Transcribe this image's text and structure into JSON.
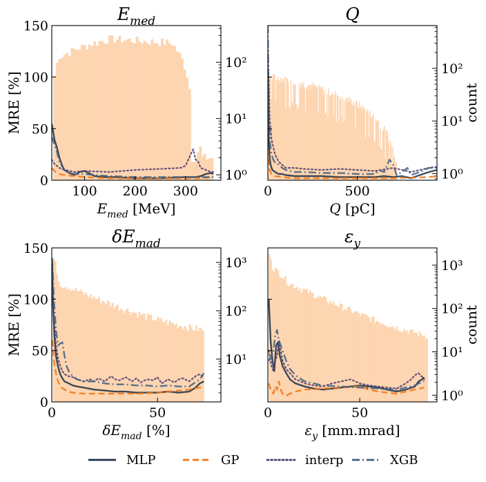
{
  "colors": {
    "hist": "#fdd5b1",
    "MLP": "#1b2f45",
    "GP": "#f2730f",
    "interp": "#4b3b70",
    "XGB": "#3e6080"
  },
  "legend": [
    {
      "name": "MLP",
      "style": "solid"
    },
    {
      "name": "GP",
      "style": "dashed"
    },
    {
      "name": "interp",
      "style": "dotted"
    },
    {
      "name": "XGB",
      "style": "dashdot"
    }
  ],
  "chart_data": [
    {
      "id": "emed",
      "type": "line",
      "title": "E_med",
      "title_main": "E",
      "title_sub": "med",
      "xlabel": "E_med [MeV]",
      "xlabel_main": "E",
      "xlabel_sub": "med",
      "xlabel_unit": "[MeV]",
      "ylabel": "MRE [%]",
      "right_label": "",
      "xlim": [
        35,
        370
      ],
      "ylim": [
        0,
        150
      ],
      "xticks": [
        100,
        200,
        300
      ],
      "xtick_labels": [
        "100",
        "200",
        "300"
      ],
      "yticks": [
        0,
        50,
        100,
        150
      ],
      "ytick_labels": [
        "0",
        "50",
        "100",
        "150"
      ],
      "right_log": [
        0.8,
        450
      ],
      "right_ticks": [
        1,
        10,
        100
      ],
      "right_tick_labels": [
        "10⁰",
        "10¹",
        "10²"
      ],
      "hist": {
        "x0": 38,
        "x1": 355,
        "bins": 64,
        "profile": "emed"
      },
      "series": [
        {
          "name": "MLP",
          "x": [
            35,
            40,
            45,
            50,
            55,
            60,
            70,
            80,
            90,
            100,
            120,
            140,
            160,
            200,
            250,
            300,
            320,
            330,
            340,
            350,
            355
          ],
          "y": [
            55,
            40,
            32,
            22,
            15,
            10,
            7,
            5,
            8,
            9,
            4,
            3,
            3,
            2,
            2,
            3,
            3,
            4,
            6,
            7,
            6
          ]
        },
        {
          "name": "GP",
          "x": [
            35,
            40,
            45,
            50,
            60,
            80,
            100,
            150,
            200,
            250,
            300,
            330,
            350,
            355
          ],
          "y": [
            12,
            9,
            7,
            6,
            5,
            4,
            3,
            2,
            2,
            2,
            2,
            2,
            3,
            3
          ]
        },
        {
          "name": "interp",
          "x": [
            35,
            40,
            50,
            60,
            80,
            100,
            150,
            200,
            250,
            290,
            300,
            310,
            315,
            320,
            325,
            330,
            340,
            350,
            355
          ],
          "y": [
            20,
            16,
            12,
            10,
            8,
            9,
            8,
            10,
            11,
            12,
            14,
            25,
            30,
            20,
            18,
            12,
            10,
            8,
            8
          ]
        },
        {
          "name": "XGB",
          "x": [
            35,
            40,
            45,
            50,
            60,
            70,
            80,
            100,
            120,
            150,
            200,
            250,
            300,
            355
          ],
          "y": [
            42,
            35,
            28,
            18,
            10,
            7,
            6,
            6,
            5,
            4,
            3,
            3,
            3,
            3
          ]
        }
      ]
    },
    {
      "id": "q",
      "type": "line",
      "title": "Q",
      "title_main": "Q",
      "title_sub": "",
      "xlabel": "Q [pC]",
      "xlabel_main": "Q",
      "xlabel_sub": "",
      "xlabel_unit": "[pC]",
      "ylabel": "",
      "right_label": "count",
      "xlim": [
        0,
        945
      ],
      "ylim": [
        0,
        150
      ],
      "xticks": [
        0,
        500
      ],
      "xtick_labels": [
        "0",
        "500"
      ],
      "yticks": [
        0,
        50,
        100,
        150
      ],
      "ytick_labels": [
        "",
        "",
        "",
        ""
      ],
      "right_log": [
        0.75,
        650
      ],
      "right_ticks": [
        1,
        10,
        100
      ],
      "right_tick_labels": [
        "10⁰",
        "10¹",
        "10²"
      ],
      "hist": {
        "x0": 2,
        "x1": 720,
        "bins": 150,
        "profile": "q"
      },
      "series": [
        {
          "name": "MLP",
          "x": [
            0,
            3,
            6,
            10,
            15,
            25,
            40,
            60,
            80,
            100,
            150,
            200,
            300,
            400,
            500,
            600,
            650,
            700,
            750,
            800,
            850,
            900,
            945
          ],
          "y": [
            100,
            60,
            35,
            22,
            15,
            10,
            8,
            6,
            6,
            5,
            4,
            4,
            4,
            3,
            3,
            3,
            4,
            3,
            4,
            2,
            5,
            8,
            10
          ]
        },
        {
          "name": "GP",
          "x": [
            0,
            5,
            10,
            20,
            40,
            80,
            150,
            300,
            500,
            700,
            900,
            945
          ],
          "y": [
            30,
            15,
            10,
            6,
            4,
            3,
            2,
            2,
            2,
            2,
            3,
            4
          ]
        },
        {
          "name": "interp",
          "x": [
            0,
            10,
            20,
            40,
            60,
            80,
            100,
            150,
            200,
            300,
            400,
            500,
            600,
            700,
            750,
            800,
            850,
            900,
            945
          ],
          "y": [
            130,
            60,
            40,
            25,
            18,
            15,
            12,
            12,
            11,
            10,
            11,
            10,
            9,
            12,
            10,
            8,
            10,
            12,
            13
          ]
        },
        {
          "name": "XGB",
          "x": [
            0,
            3,
            6,
            10,
            20,
            30,
            40,
            60,
            80,
            100,
            150,
            200,
            300,
            400,
            500,
            600,
            620,
            650,
            680,
            700,
            720,
            750,
            780,
            800,
            850,
            900,
            945
          ],
          "y": [
            150,
            90,
            60,
            40,
            25,
            20,
            17,
            15,
            12,
            10,
            8,
            8,
            7,
            7,
            6,
            6,
            10,
            8,
            20,
            15,
            5,
            8,
            12,
            5,
            8,
            12,
            12
          ]
        }
      ]
    },
    {
      "id": "demad",
      "type": "line",
      "title": "δE_mad",
      "title_main": "δE",
      "title_sub": "mad",
      "xlabel": "δE_mad [%]",
      "xlabel_main": "δE",
      "xlabel_sub": "mad",
      "xlabel_unit": "[%]",
      "ylabel": "MRE [%]",
      "right_label": "",
      "xlim": [
        0,
        80
      ],
      "ylim": [
        0,
        150
      ],
      "xticks": [
        0,
        50
      ],
      "xtick_labels": [
        "0",
        "50"
      ],
      "yticks": [
        0,
        50,
        100,
        150
      ],
      "ytick_labels": [
        "0",
        "50",
        "100",
        "150"
      ],
      "right_log": [
        1.3,
        2000
      ],
      "right_ticks": [
        10,
        100,
        1000
      ],
      "right_tick_labels": [
        "10¹",
        "10²",
        "10³"
      ],
      "hist": {
        "x0": 0.5,
        "x1": 72,
        "bins": 90,
        "profile": "demad"
      },
      "series": [
        {
          "name": "MLP",
          "x": [
            0.2,
            0.6,
            1.2,
            2,
            3,
            4,
            5,
            6,
            8,
            10,
            12,
            15,
            20,
            25,
            30,
            35,
            40,
            45,
            50,
            55,
            60,
            65,
            68,
            70,
            72
          ],
          "y": [
            135,
            95,
            65,
            45,
            34,
            27,
            23,
            20,
            18,
            16,
            15,
            14,
            12,
            11,
            10,
            10,
            9,
            9,
            9,
            10,
            9,
            10,
            14,
            18,
            20
          ]
        },
        {
          "name": "GP",
          "x": [
            0.3,
            1,
            2,
            3,
            4,
            6,
            8,
            10,
            15,
            20,
            30,
            40,
            50,
            55,
            60,
            65,
            70,
            72
          ],
          "y": [
            60,
            40,
            28,
            20,
            15,
            12,
            10,
            9,
            8,
            8,
            8,
            8,
            9,
            10,
            11,
            12,
            14,
            15
          ]
        },
        {
          "name": "interp",
          "x": [
            0.2,
            1,
            2,
            3,
            4,
            5,
            6,
            8,
            10,
            12,
            15,
            18,
            20,
            22,
            25,
            28,
            30,
            32,
            35,
            38,
            40,
            42,
            45,
            48,
            50,
            52,
            55,
            58,
            60,
            62,
            65,
            68,
            70,
            72
          ],
          "y": [
            110,
            80,
            55,
            42,
            35,
            30,
            27,
            25,
            24,
            22,
            20,
            22,
            20,
            23,
            20,
            25,
            22,
            21,
            24,
            20,
            23,
            19,
            22,
            21,
            24,
            18,
            22,
            19,
            22,
            23,
            20,
            25,
            27,
            24
          ]
        },
        {
          "name": "XGB",
          "x": [
            0.2,
            1,
            2,
            3,
            4,
            5,
            6,
            7,
            8,
            10,
            12,
            15,
            20,
            25,
            30,
            35,
            40,
            45,
            50,
            55,
            60,
            65,
            70,
            72
          ],
          "y": [
            140,
            100,
            70,
            55,
            57,
            58,
            45,
            35,
            30,
            25,
            22,
            20,
            20,
            18,
            17,
            17,
            16,
            16,
            15,
            16,
            15,
            15,
            22,
            28
          ]
        }
      ]
    },
    {
      "id": "ey",
      "type": "line",
      "title": "ε_y",
      "title_main": "ε",
      "title_sub": "y",
      "xlabel": "ε_y [mm.mrad]",
      "xlabel_main": "ε",
      "xlabel_sub": "y",
      "xlabel_unit": "[mm.mrad]",
      "ylabel": "",
      "right_label": "count",
      "xlim": [
        0,
        92
      ],
      "ylim": [
        0,
        150
      ],
      "xticks": [
        0,
        50
      ],
      "xtick_labels": [
        "0",
        "50"
      ],
      "yticks": [
        0,
        50,
        100,
        150
      ],
      "ytick_labels": [
        "",
        "",
        "",
        ""
      ],
      "right_log": [
        0.7,
        2500
      ],
      "right_ticks": [
        1,
        10,
        100,
        1000
      ],
      "right_tick_labels": [
        "10⁰",
        "10¹",
        "10²",
        "10³"
      ],
      "hist": {
        "x0": 0.5,
        "x1": 87,
        "bins": 110,
        "profile": "ey"
      },
      "series": [
        {
          "name": "MLP",
          "x": [
            0.5,
            1.5,
            2.5,
            3.5,
            4.5,
            5.5,
            6.5,
            8,
            10,
            12,
            15,
            20,
            25,
            30,
            35,
            40,
            45,
            50,
            55,
            60,
            65,
            70,
            75,
            80,
            82,
            84,
            85
          ],
          "y": [
            100,
            60,
            40,
            30,
            55,
            58,
            45,
            35,
            28,
            22,
            18,
            15,
            13,
            12,
            13,
            14,
            15,
            16,
            15,
            14,
            12,
            10,
            12,
            15,
            20,
            22,
            24
          ]
        },
        {
          "name": "GP",
          "x": [
            0.5,
            2,
            3,
            4,
            5,
            6,
            7,
            8,
            10,
            12,
            15,
            20,
            30,
            40,
            50,
            55,
            60,
            65,
            70,
            75,
            80,
            85
          ],
          "y": [
            18,
            10,
            8,
            15,
            12,
            20,
            12,
            8,
            6,
            8,
            10,
            12,
            13,
            14,
            15,
            12,
            10,
            9,
            8,
            10,
            12,
            14
          ]
        },
        {
          "name": "interp",
          "x": [
            0.5,
            2,
            3,
            4,
            5,
            6,
            8,
            10,
            12,
            15,
            18,
            20,
            25,
            30,
            35,
            40,
            45,
            50,
            55,
            60,
            65,
            70,
            75,
            78,
            80,
            82,
            85
          ],
          "y": [
            50,
            35,
            30,
            40,
            45,
            60,
            40,
            32,
            28,
            22,
            20,
            18,
            16,
            15,
            18,
            20,
            22,
            18,
            16,
            15,
            14,
            13,
            18,
            22,
            26,
            28,
            22
          ]
        },
        {
          "name": "XGB",
          "x": [
            0.5,
            2,
            3,
            4,
            5,
            6,
            8,
            10,
            12,
            15,
            20,
            25,
            30,
            40,
            50,
            60,
            70,
            75,
            80,
            82,
            85
          ],
          "y": [
            40,
            45,
            50,
            65,
            70,
            60,
            50,
            40,
            32,
            26,
            20,
            18,
            16,
            15,
            14,
            13,
            12,
            14,
            16,
            18,
            20
          ]
        }
      ]
    }
  ]
}
